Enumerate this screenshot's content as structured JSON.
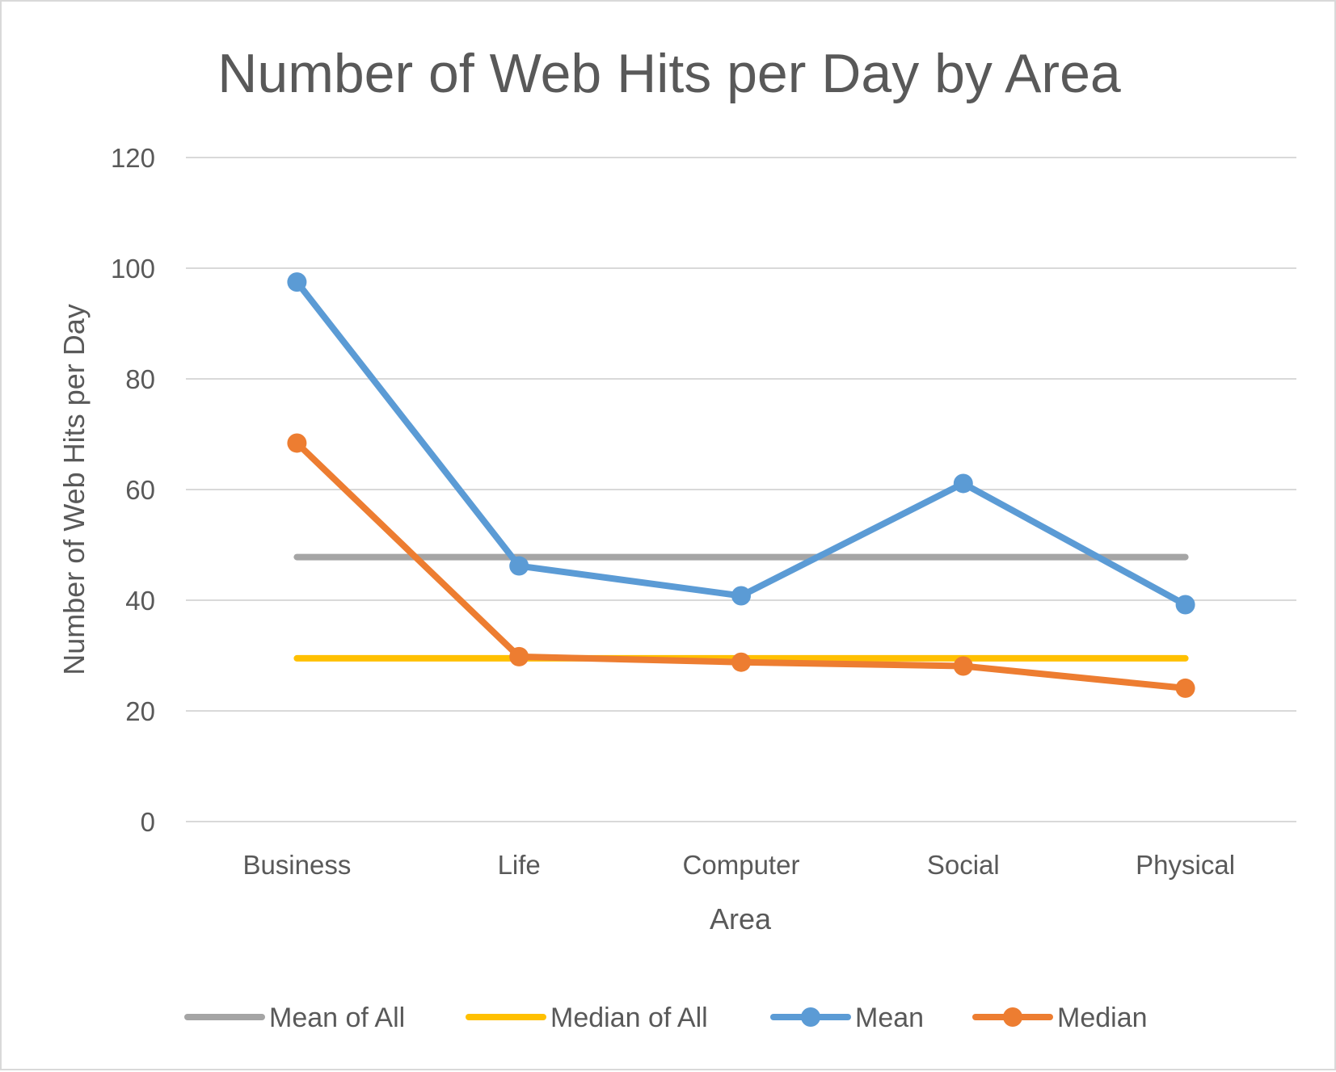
{
  "chart_data": {
    "type": "line",
    "title": "Number of Web Hits per Day by Area",
    "xlabel": "Area",
    "ylabel": "Number of Web Hits per Day",
    "categories": [
      "Business",
      "Life",
      "Computer",
      "Social",
      "Physical"
    ],
    "ylim": [
      0,
      120
    ],
    "yticks": [
      0,
      20,
      40,
      60,
      80,
      100,
      120
    ],
    "grid": true,
    "legend_position": "bottom",
    "series": [
      {
        "name": "Mean of All",
        "values": [
          47.8,
          47.8,
          47.8,
          47.8,
          47.8
        ],
        "color": "#a5a5a5",
        "markers": false
      },
      {
        "name": "Median of All",
        "values": [
          29.5,
          29.5,
          29.5,
          29.5,
          29.5
        ],
        "color": "#ffc000",
        "markers": false
      },
      {
        "name": "Mean",
        "values": [
          97.5,
          46.2,
          40.8,
          61.1,
          39.2
        ],
        "color": "#5b9bd5",
        "markers": true
      },
      {
        "name": "Median",
        "values": [
          68.4,
          29.8,
          28.8,
          28.1,
          24.1
        ],
        "color": "#ed7d31",
        "markers": true
      }
    ]
  }
}
